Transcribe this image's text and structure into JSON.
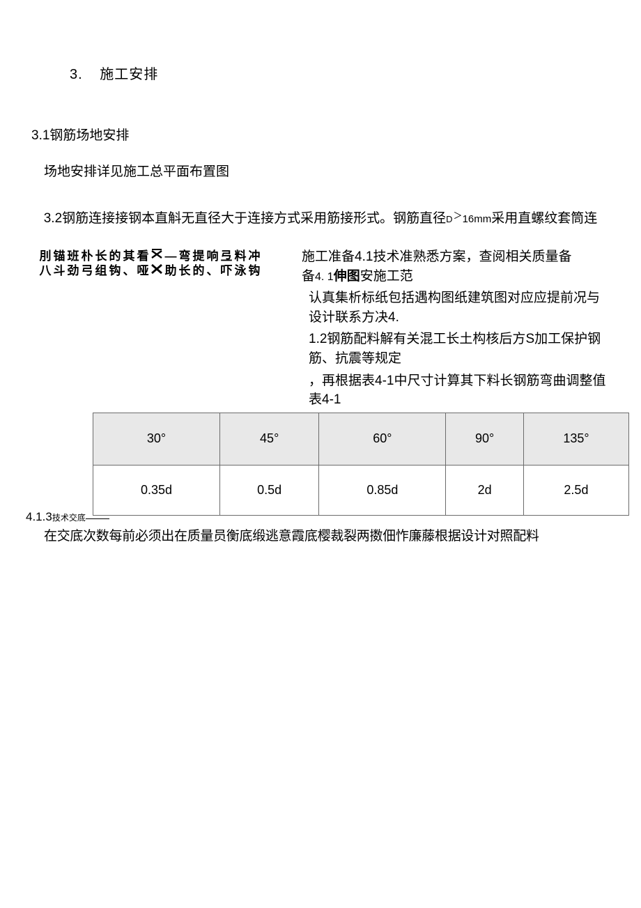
{
  "section3": {
    "number": "3.",
    "title": "施工安排"
  },
  "sub31": {
    "number": "3.1",
    "title": "钢筋场地安排",
    "body": "场地安排详见施工总平面布置图"
  },
  "sub32": {
    "number": "3.2",
    "text_a": "钢筋连接接钢本直斛无直径大于连接方式采用筋接形式。钢筋直径",
    "d": "D",
    "gt": "＞",
    "mm": "16mm",
    "text_b": "采用直螺纹套筒连"
  },
  "vertical": {
    "row1": [
      "刖",
      "锚",
      "班",
      "朴",
      "长",
      "的",
      "其",
      "看",
      "X1",
      "—",
      "弯",
      "提",
      "响",
      "弖",
      "料",
      "冲"
    ],
    "row2": [
      "八",
      "斗",
      "劲",
      "弓",
      "组",
      "钩",
      "、",
      "哑",
      "X2",
      "助",
      "长",
      "的",
      "、",
      "吓",
      "泳",
      "钩"
    ]
  },
  "right1": {
    "a": "施工准备",
    "b": "4.1",
    "c": "技术准熟悉方案，查阅相关质量备",
    "d": "4. 1",
    "e": "伸图",
    "f": "安施工范"
  },
  "cont": {
    "p1": "认真集析标纸包括遇构图纸建筑图对应应提前况与设计联系方决4.",
    "p2a": "1.2",
    "p2b": "钢筋配料解有关混工长土构核后方",
    "p2c": "S",
    "p2d": "加工保护钢筋、抗震等规定",
    "p3a": "，再根据表",
    "p3b": "4-1",
    "p3c": "中尺寸计算其下料长钢筋弯曲调整值表",
    "p3d": "4-1"
  },
  "table": {
    "header": [
      "30°",
      "45°",
      "60°",
      "90°",
      "135°"
    ],
    "row": [
      "0.35d",
      "0.5d",
      "0.85d",
      "2d",
      "2.5d"
    ],
    "header_bg": "#e8e8e8",
    "border_color": "#6b6b6b",
    "cell_bg": "#ffffff",
    "font_size": 18
  },
  "footer": {
    "num": "4.1.3",
    "small": "技术交底",
    "line": "在交底次数每前必须出在质量员衡底缎逃意霞底樱裁裂两擞佃怍廉藤根据设计对照配料"
  },
  "colors": {
    "page_bg": "#ffffff",
    "text": "#000000"
  }
}
